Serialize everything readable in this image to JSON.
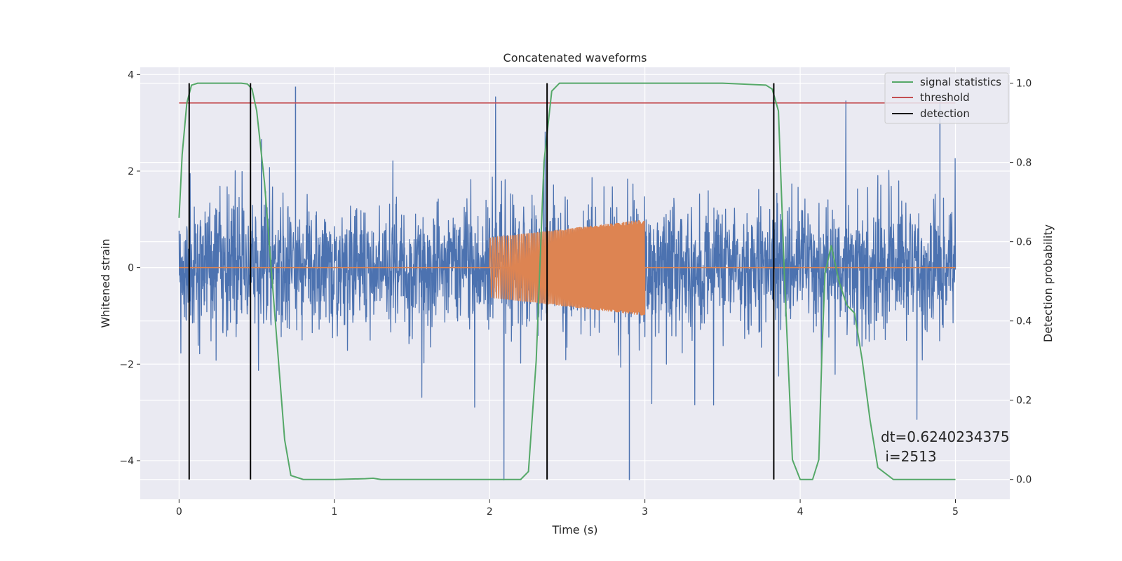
{
  "chart_data": {
    "type": "line",
    "title": "Concatenated waveforms",
    "xlabel": "Time (s)",
    "ylabel_left": "Whitened strain",
    "ylabel_right": "Detection probability",
    "xlim": [
      -0.25,
      5.35
    ],
    "ylim_left": [
      -4.8,
      4.15
    ],
    "ylim_right": [
      -0.05,
      1.04
    ],
    "x_ticks": [
      0,
      1,
      2,
      3,
      4,
      5
    ],
    "y_left_ticks": [
      -4,
      -2,
      0,
      2,
      4
    ],
    "y_right_ticks": [
      0.0,
      0.2,
      0.4,
      0.6,
      0.8,
      1.0
    ],
    "x_tick_labels": [
      "0",
      "1",
      "2",
      "3",
      "4",
      "5"
    ],
    "y_left_tick_labels": [
      "−4",
      "−2",
      "0",
      "2",
      "4"
    ],
    "y_right_tick_labels": [
      "0.0",
      "0.2",
      "0.4",
      "0.6",
      "0.8",
      "1.0"
    ],
    "grid": true,
    "legend_position": "top-right",
    "series": [
      {
        "name": "signal statistics",
        "axis": "right",
        "color": "#55a868",
        "x": [
          0.0,
          0.02,
          0.05,
          0.08,
          0.12,
          0.2,
          0.3,
          0.4,
          0.44,
          0.47,
          0.5,
          0.55,
          0.6,
          0.65,
          0.68,
          0.72,
          0.8,
          1.0,
          1.2,
          1.25,
          1.3,
          1.6,
          2.0,
          2.2,
          2.25,
          2.3,
          2.35,
          2.4,
          2.45,
          3.0,
          3.5,
          3.78,
          3.82,
          3.86,
          3.9,
          3.95,
          4.0,
          4.08,
          4.12,
          4.14,
          4.16,
          4.2,
          4.25,
          4.3,
          4.35,
          4.4,
          4.45,
          4.5,
          4.6,
          5.0
        ],
        "y": [
          0.66,
          0.82,
          0.95,
          0.995,
          1.0,
          1.0,
          1.0,
          1.0,
          0.998,
          0.985,
          0.93,
          0.75,
          0.5,
          0.25,
          0.1,
          0.01,
          0.0,
          0.0,
          0.002,
          0.003,
          0.0,
          0.0,
          0.0,
          0.0,
          0.02,
          0.3,
          0.8,
          0.98,
          1.0,
          1.0,
          1.0,
          0.995,
          0.985,
          0.93,
          0.5,
          0.05,
          0.0,
          0.0,
          0.05,
          0.32,
          0.52,
          0.59,
          0.5,
          0.44,
          0.42,
          0.3,
          0.15,
          0.03,
          0.0,
          0.0
        ]
      },
      {
        "name": "threshold",
        "axis": "right",
        "color": "#c44e52",
        "x": [
          0.0,
          5.0
        ],
        "y": [
          0.95,
          0.95
        ]
      },
      {
        "name": "detection",
        "axis": "right",
        "color": "#000000",
        "x": [
          0.065,
          0.46,
          2.37,
          3.83
        ],
        "y_range": [
          0.0,
          1.0
        ]
      },
      {
        "axis": "left",
        "color": "#4c72b0",
        "x_range": [
          0.0,
          5.0
        ],
        "noise_std": 0.65,
        "y_range": [
          -4.4,
          3.75
        ],
        "extreme_points": [
          [
            0.75,
            3.75
          ],
          [
            2.9,
            -4.4
          ],
          [
            4.9,
            3.6
          ]
        ]
      },
      {
        "axis": "left",
        "color": "#dd8452",
        "x_range": [
          2.0,
          3.0
        ],
        "envelope_start": 0.62,
        "envelope_end": 1.0,
        "flat_value": 0.0
      }
    ]
  },
  "annotation": {
    "line1": "dt=0.6240234375",
    "line2": " i=2513"
  }
}
